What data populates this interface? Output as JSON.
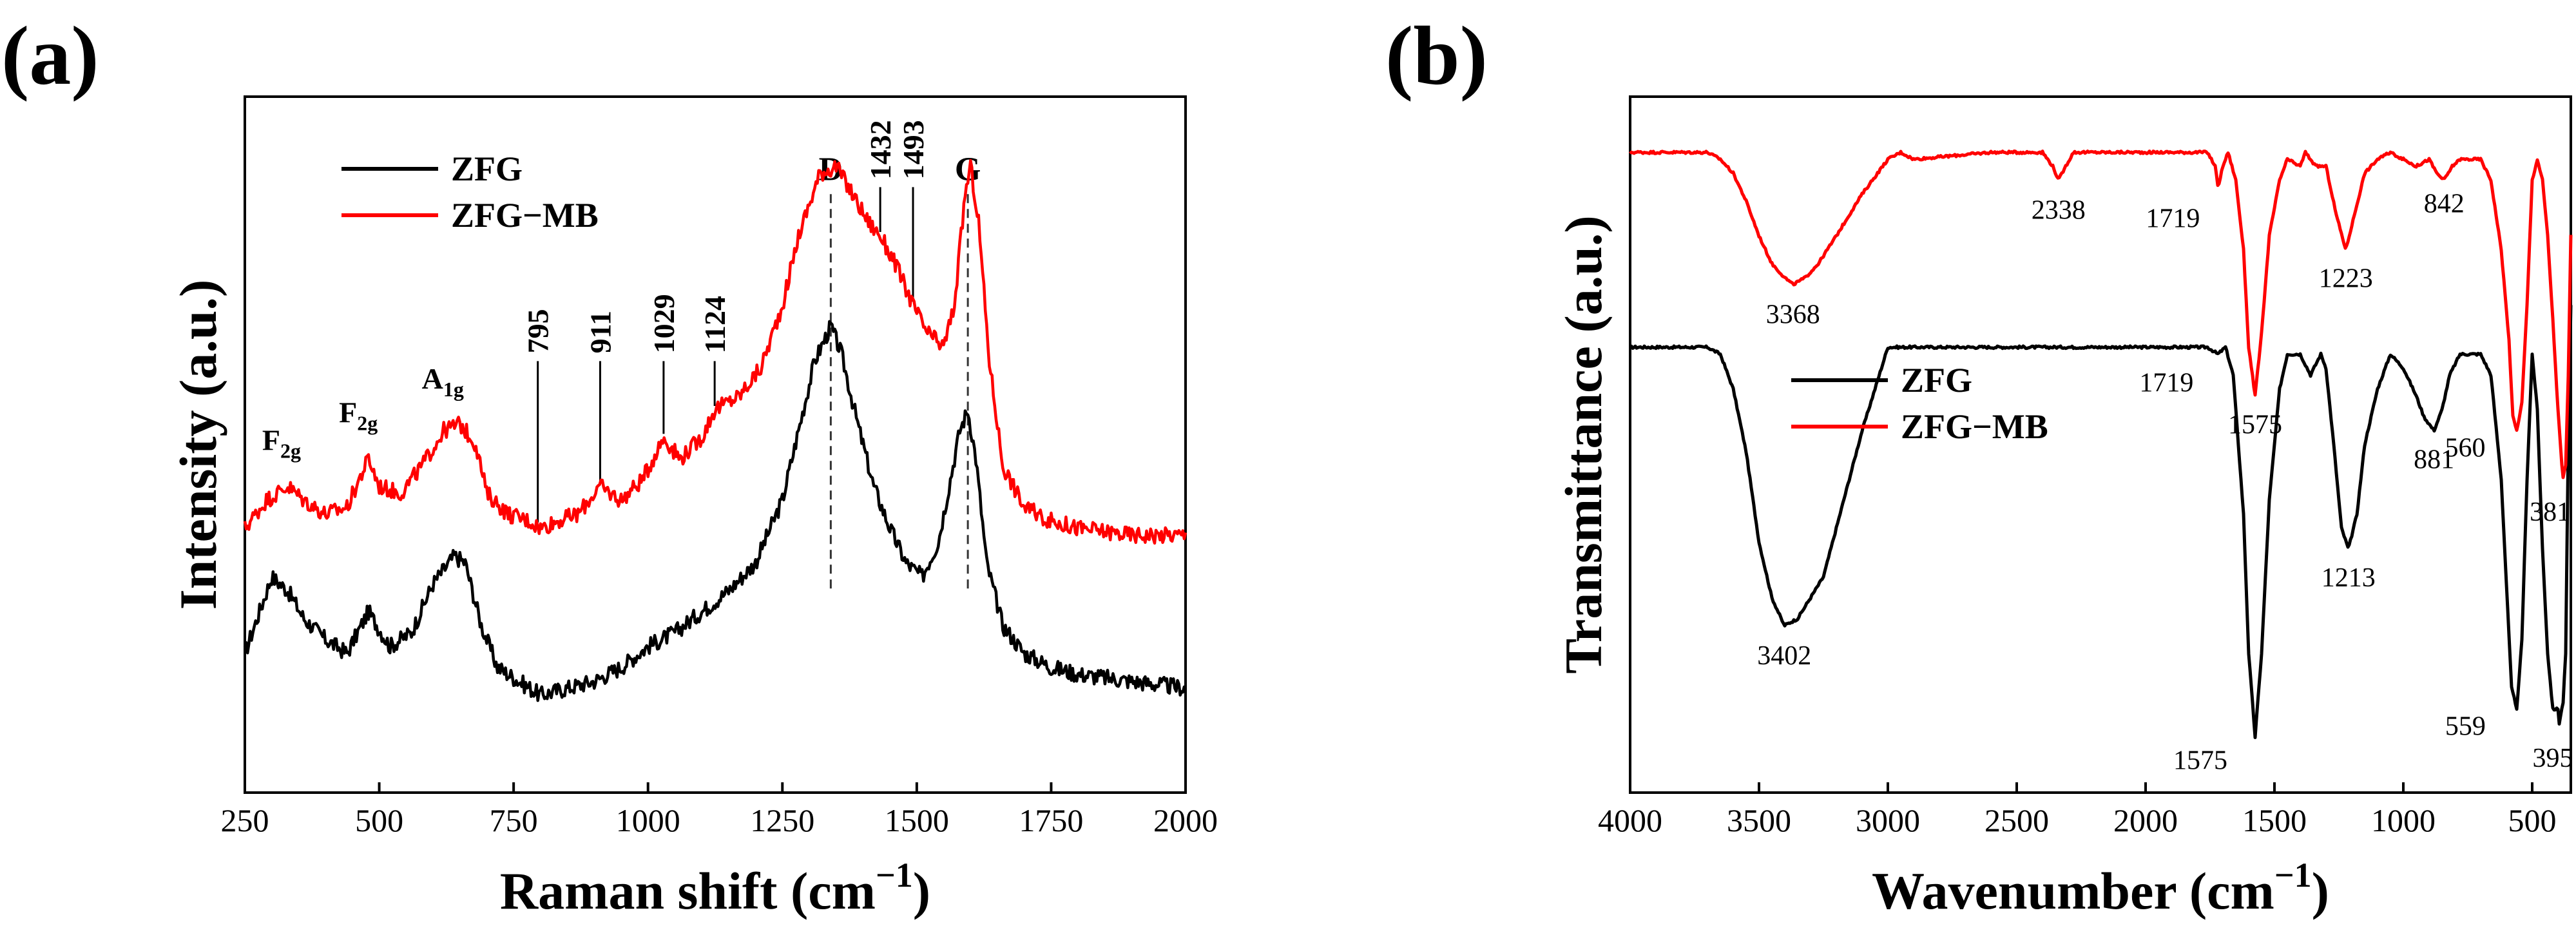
{
  "chart_data": [
    {
      "panel": "(a)",
      "type": "line",
      "xlabel": "Raman shift (cm",
      "xlabel_sup": "−1",
      "xlabel_end": ")",
      "ylabel": "Intensity (a.u.)",
      "xlim": [
        250,
        2000
      ],
      "xticks": [
        250,
        500,
        750,
        1000,
        1250,
        1500,
        1750,
        2000
      ],
      "yticks_shown": false,
      "legend_position": "top-left",
      "series": [
        {
          "name": "ZFG",
          "color": "#000000",
          "x": [
            250,
            300,
            330,
            360,
            400,
            440,
            480,
            520,
            560,
            600,
            640,
            660,
            690,
            720,
            760,
            800,
            850,
            900,
            950,
            1000,
            1050,
            1100,
            1150,
            1200,
            1250,
            1280,
            1310,
            1340,
            1360,
            1390,
            1420,
            1450,
            1480,
            1510,
            1540,
            1560,
            1580,
            1595,
            1610,
            1630,
            1660,
            1700,
            1750,
            1800,
            1900,
            2000
          ],
          "y": [
            0.2,
            0.31,
            0.29,
            0.25,
            0.22,
            0.2,
            0.26,
            0.21,
            0.23,
            0.3,
            0.34,
            0.33,
            0.24,
            0.18,
            0.16,
            0.14,
            0.15,
            0.16,
            0.18,
            0.21,
            0.23,
            0.26,
            0.29,
            0.33,
            0.42,
            0.52,
            0.62,
            0.67,
            0.63,
            0.53,
            0.44,
            0.38,
            0.33,
            0.31,
            0.36,
            0.44,
            0.52,
            0.55,
            0.48,
            0.33,
            0.24,
            0.2,
            0.18,
            0.17,
            0.16,
            0.15
          ]
        },
        {
          "name": "ZFG−MB",
          "color": "#ff0000",
          "x": [
            250,
            290,
            330,
            360,
            400,
            440,
            480,
            500,
            540,
            580,
            620,
            650,
            680,
            700,
            740,
            780,
            800,
            830,
            870,
            910,
            950,
            990,
            1029,
            1060,
            1100,
            1124,
            1170,
            1210,
            1250,
            1280,
            1320,
            1350,
            1380,
            1410,
            1432,
            1460,
            1493,
            1520,
            1550,
            1570,
            1590,
            1600,
            1615,
            1635,
            1660,
            1700,
            1750,
            1800,
            1900,
            2000
          ],
          "y": [
            0.38,
            0.42,
            0.44,
            0.42,
            0.4,
            0.41,
            0.48,
            0.44,
            0.43,
            0.47,
            0.52,
            0.53,
            0.5,
            0.43,
            0.4,
            0.39,
            0.38,
            0.39,
            0.4,
            0.44,
            0.42,
            0.45,
            0.51,
            0.48,
            0.51,
            0.55,
            0.57,
            0.61,
            0.7,
            0.8,
            0.89,
            0.9,
            0.86,
            0.82,
            0.8,
            0.76,
            0.7,
            0.66,
            0.64,
            0.7,
            0.86,
            0.9,
            0.82,
            0.62,
            0.47,
            0.41,
            0.39,
            0.38,
            0.37,
            0.37
          ]
        }
      ],
      "annotations": [
        {
          "text": "F",
          "sub": "2g",
          "x": 335,
          "kind": "mode"
        },
        {
          "text": "F",
          "sub": "2g",
          "x": 478,
          "kind": "mode"
        },
        {
          "text": "A",
          "sub": "1g",
          "x": 635,
          "kind": "mode"
        },
        {
          "text": "795",
          "x": 795,
          "kind": "marker"
        },
        {
          "text": "911",
          "x": 911,
          "kind": "marker"
        },
        {
          "text": "1029",
          "x": 1029,
          "kind": "marker"
        },
        {
          "text": "1124",
          "x": 1124,
          "kind": "marker"
        },
        {
          "text": "1432",
          "x": 1432,
          "kind": "marker"
        },
        {
          "text": "1493",
          "x": 1493,
          "kind": "marker"
        },
        {
          "text": "D",
          "x": 1340,
          "kind": "dashed"
        },
        {
          "text": "G",
          "x": 1595,
          "kind": "dashed"
        }
      ]
    },
    {
      "panel": "(b)",
      "type": "line",
      "xlabel": "Wavenumber (cm",
      "xlabel_sup": "−1",
      "xlabel_end": ")",
      "ylabel": "Transmittance (a.u.)",
      "xlim": [
        4000,
        350
      ],
      "x_reversed": true,
      "xticks": [
        4000,
        3500,
        3000,
        2500,
        2000,
        1500,
        1000,
        500
      ],
      "yticks_shown": false,
      "legend_position": "center-left",
      "series": [
        {
          "name": "ZFG",
          "color": "#000000",
          "x": [
            4000,
            3700,
            3650,
            3600,
            3550,
            3500,
            3450,
            3402,
            3350,
            3300,
            3250,
            3200,
            3100,
            3000,
            2900,
            2500,
            2000,
            1760,
            1719,
            1690,
            1660,
            1620,
            1600,
            1575,
            1550,
            1520,
            1480,
            1450,
            1400,
            1360,
            1320,
            1300,
            1270,
            1240,
            1213,
            1180,
            1150,
            1100,
            1050,
            1000,
            950,
            920,
            881,
            850,
            820,
            780,
            750,
            700,
            660,
            620,
            600,
            580,
            559,
            540,
            520,
            500,
            480,
            460,
            440,
            420,
            400,
            395,
            380,
            370,
            360,
            350
          ],
          "y": [
            0.64,
            0.64,
            0.63,
            0.58,
            0.49,
            0.36,
            0.28,
            0.24,
            0.25,
            0.28,
            0.31,
            0.38,
            0.52,
            0.64,
            0.64,
            0.64,
            0.64,
            0.64,
            0.63,
            0.64,
            0.6,
            0.4,
            0.2,
            0.08,
            0.2,
            0.42,
            0.58,
            0.63,
            0.63,
            0.6,
            0.63,
            0.61,
            0.5,
            0.38,
            0.35,
            0.4,
            0.5,
            0.58,
            0.63,
            0.61,
            0.57,
            0.54,
            0.52,
            0.55,
            0.6,
            0.63,
            0.63,
            0.63,
            0.6,
            0.45,
            0.3,
            0.15,
            0.12,
            0.22,
            0.45,
            0.63,
            0.55,
            0.35,
            0.2,
            0.12,
            0.12,
            0.1,
            0.13,
            0.2,
            0.5,
            0.7
          ]
        },
        {
          "name": "ZFG−MB",
          "color": "#ff0000",
          "x": [
            4000,
            3700,
            3650,
            3600,
            3550,
            3500,
            3450,
            3400,
            3368,
            3320,
            3270,
            3200,
            3100,
            3000,
            2950,
            2900,
            2600,
            2400,
            2360,
            2338,
            2310,
            2280,
            2000,
            1760,
            1730,
            1719,
            1700,
            1680,
            1650,
            1620,
            1600,
            1575,
            1550,
            1520,
            1480,
            1450,
            1400,
            1380,
            1340,
            1300,
            1260,
            1223,
            1190,
            1150,
            1100,
            1050,
            1000,
            950,
            900,
            870,
            842,
            810,
            780,
            740,
            700,
            660,
            620,
            590,
            575,
            560,
            540,
            520,
            500,
            480,
            460,
            440,
            420,
            400,
            381,
            370,
            360,
            350
          ],
          "y": [
            0.92,
            0.92,
            0.91,
            0.89,
            0.85,
            0.8,
            0.76,
            0.74,
            0.73,
            0.74,
            0.76,
            0.8,
            0.86,
            0.91,
            0.92,
            0.91,
            0.92,
            0.92,
            0.9,
            0.88,
            0.9,
            0.92,
            0.92,
            0.92,
            0.9,
            0.87,
            0.9,
            0.92,
            0.88,
            0.78,
            0.64,
            0.57,
            0.66,
            0.8,
            0.88,
            0.91,
            0.9,
            0.92,
            0.9,
            0.9,
            0.83,
            0.78,
            0.83,
            0.89,
            0.91,
            0.92,
            0.91,
            0.9,
            0.91,
            0.89,
            0.88,
            0.9,
            0.91,
            0.91,
            0.91,
            0.88,
            0.78,
            0.65,
            0.54,
            0.52,
            0.56,
            0.7,
            0.88,
            0.91,
            0.88,
            0.8,
            0.68,
            0.55,
            0.45,
            0.47,
            0.6,
            0.8
          ]
        }
      ],
      "annotations": [
        {
          "text": "3368",
          "series": "ZFG−MB",
          "x": 3368
        },
        {
          "text": "2338",
          "series": "ZFG−MB",
          "x": 2338
        },
        {
          "text": "1719",
          "series": "ZFG−MB",
          "x": 1719
        },
        {
          "text": "1575",
          "series": "ZFG−MB",
          "x": 1575
        },
        {
          "text": "1223",
          "series": "ZFG−MB",
          "x": 1223
        },
        {
          "text": "842",
          "series": "ZFG−MB",
          "x": 842
        },
        {
          "text": "560",
          "series": "ZFG−MB",
          "x": 560
        },
        {
          "text": "381",
          "series": "ZFG−MB",
          "x": 381
        },
        {
          "text": "3402",
          "series": "ZFG",
          "x": 3402
        },
        {
          "text": "1719",
          "series": "ZFG",
          "x": 1719
        },
        {
          "text": "1575",
          "series": "ZFG",
          "x": 1575
        },
        {
          "text": "1213",
          "series": "ZFG",
          "x": 1213
        },
        {
          "text": "881",
          "series": "ZFG",
          "x": 881
        },
        {
          "text": "559",
          "series": "ZFG",
          "x": 559
        },
        {
          "text": "395",
          "series": "ZFG",
          "x": 395
        }
      ]
    }
  ]
}
